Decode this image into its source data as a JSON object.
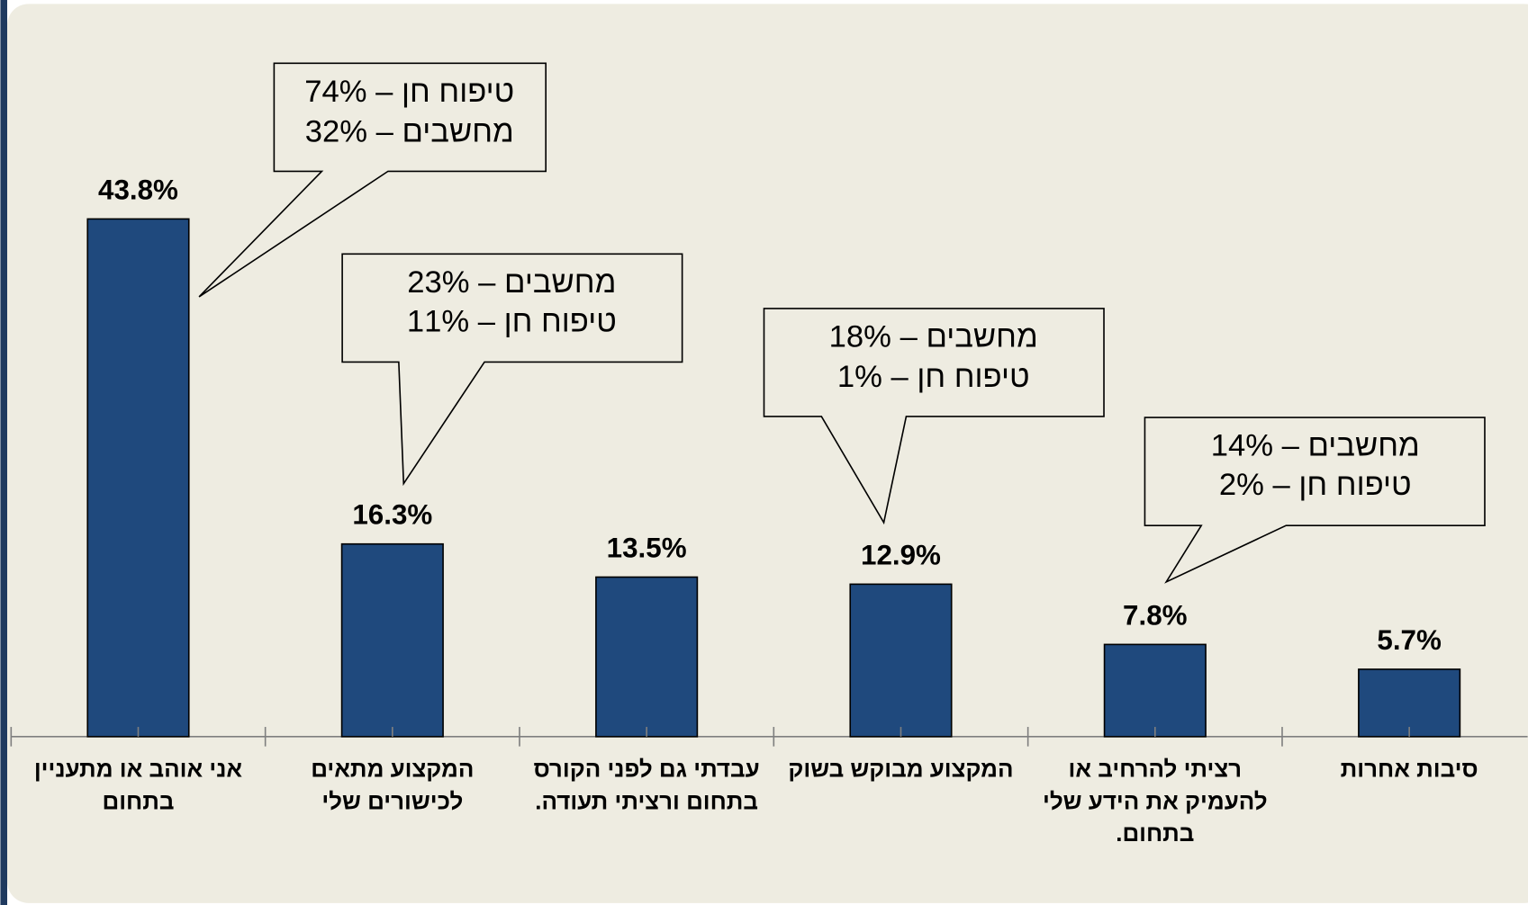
{
  "chart_data": {
    "type": "bar",
    "categories": [
      [
        "אני אוהב או מתעניין",
        "בתחום"
      ],
      [
        "המקצוע מתאים",
        "לכישורים שלי"
      ],
      [
        "עבדתי גם לפני הקורס",
        "בתחום ורציתי תעודה."
      ],
      [
        "המקצוע מבוקש בשוק"
      ],
      [
        "רציתי להרחיב או",
        "להעמיק את הידע שלי",
        "בתחום."
      ],
      [
        "סיבות אחרות"
      ]
    ],
    "values": [
      43.8,
      16.3,
      13.5,
      12.9,
      7.8,
      5.7
    ],
    "value_labels": [
      "43.8%",
      "16.3%",
      "13.5%",
      "12.9%",
      "7.8%",
      "5.7%"
    ],
    "color": "#1f497d",
    "annotations": [
      [
        "טיפוח חן – 74%",
        "מחשבים – 32%"
      ],
      [
        "מחשבים – 23%",
        "טיפוח חן – 11%"
      ],
      [
        "מחשבים – 18%",
        "טיפוח חן – 1%"
      ],
      [
        "מחשבים – 14%",
        "טיפוח חן – 2%"
      ]
    ]
  }
}
